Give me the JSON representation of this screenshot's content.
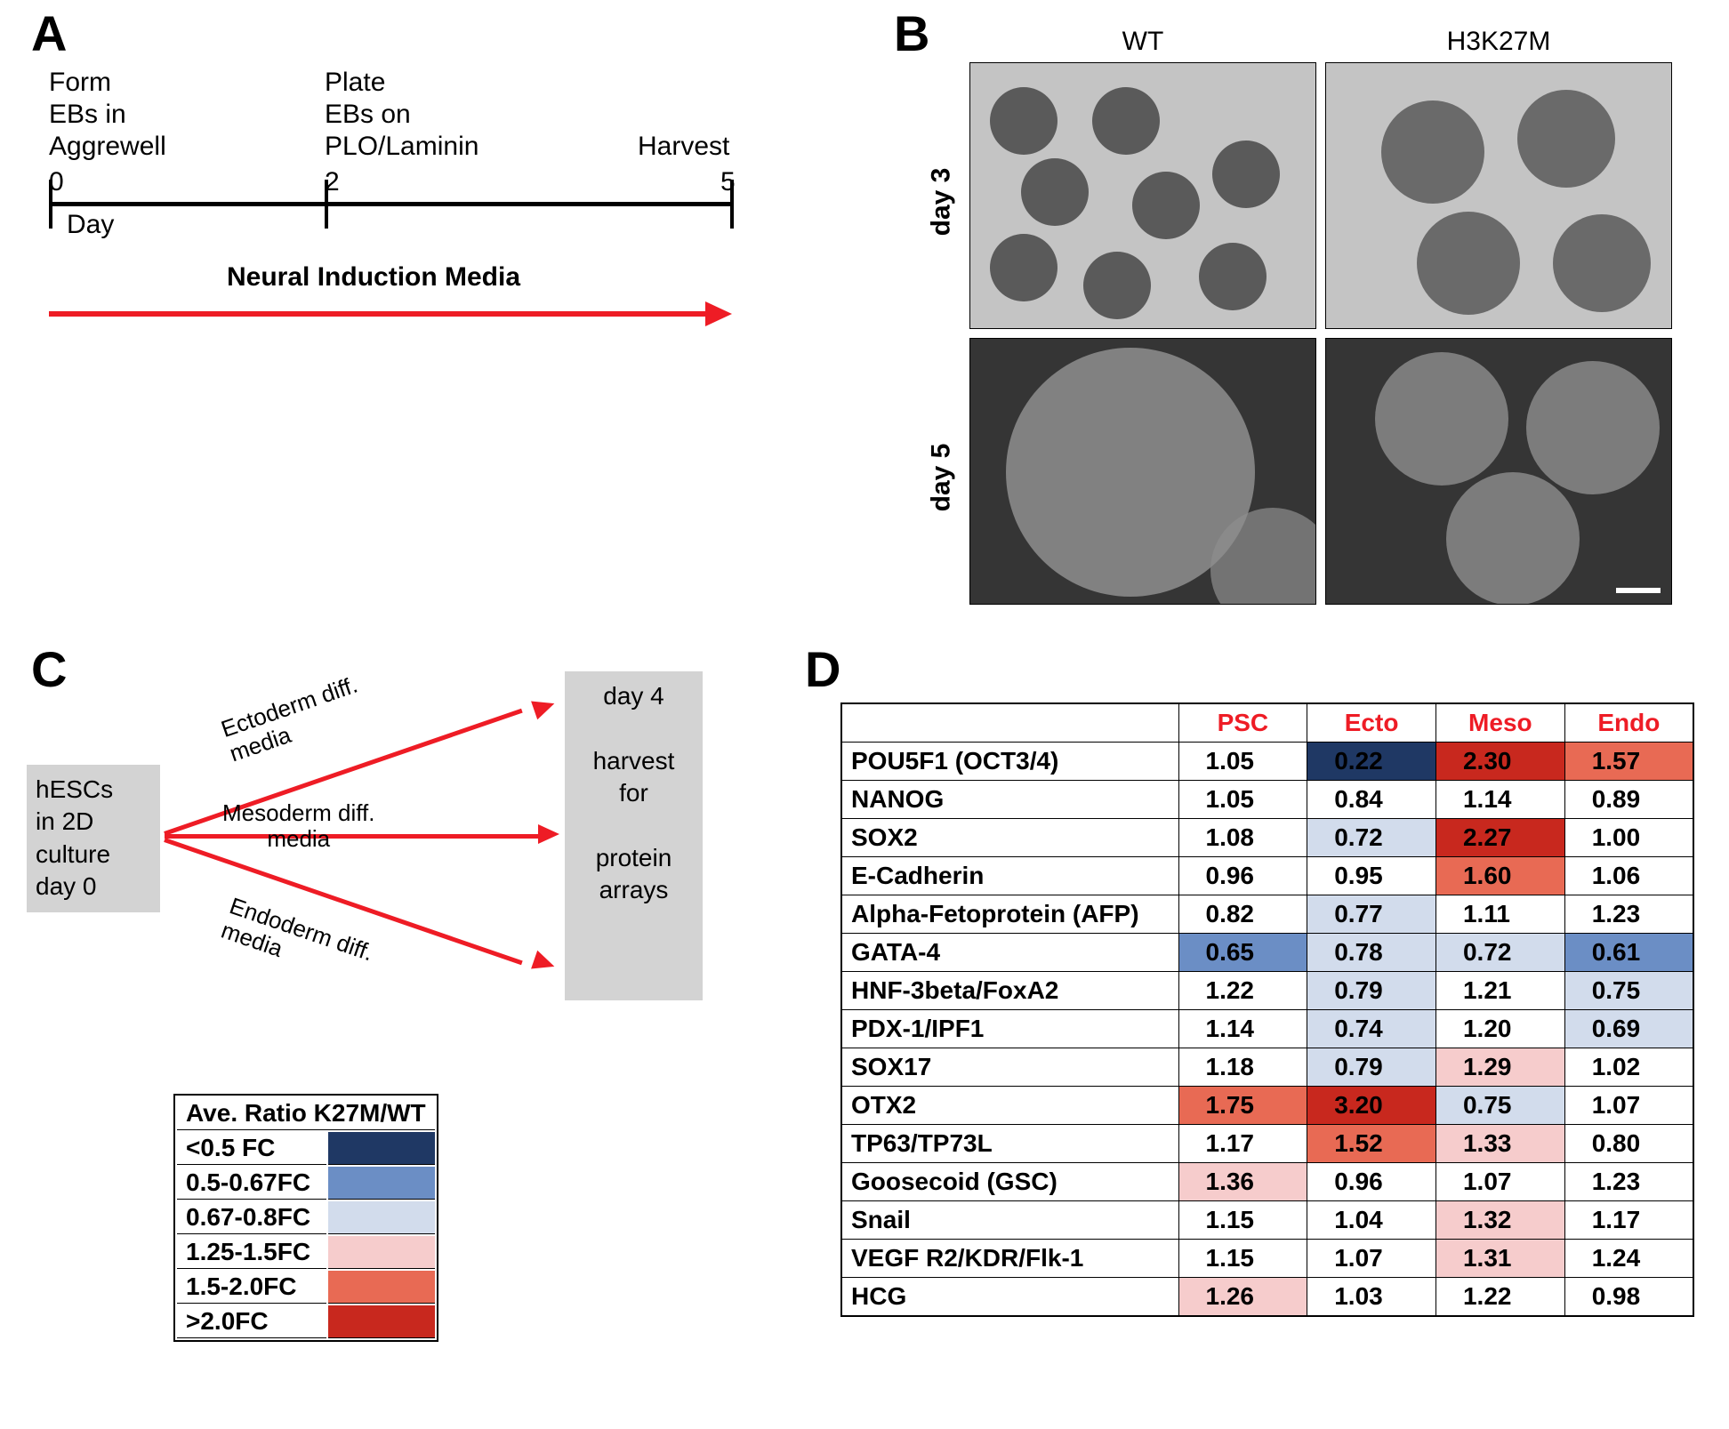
{
  "panelLabels": {
    "A": "A",
    "B": "B",
    "C": "C",
    "D": "D"
  },
  "panelA": {
    "step1": "Form\nEBs in\nAggrewell",
    "step2": "Plate\nEBs on\nPLO/Laminin",
    "step3": "Harvest",
    "day_label": "Day",
    "t0": "0",
    "t2": "2",
    "t5": "5",
    "media": "Neural Induction Media",
    "arrow_color": "#ee1c25"
  },
  "panelB": {
    "col1": "WT",
    "col2": "H3K27M",
    "row1": "day 3",
    "row2": "day 5"
  },
  "panelC": {
    "box1": "hESCs\nin 2D\nculture\nday 0",
    "box2": "day 4\n\nharvest\nfor\n\nprotein\narrays",
    "a1": "Ectoderm diff.\nmedia",
    "a2": "Mesoderm diff.\nmedia",
    "a3": "Endoderm diff.\nmedia"
  },
  "legend": {
    "header": "Ave. Ratio K27M/WT",
    "rows": [
      {
        "label": "<0.5 FC",
        "color": "#1f3864"
      },
      {
        "label": "0.5-0.67FC",
        "color": "#6b8ec5"
      },
      {
        "label": "0.67-0.8FC",
        "color": "#d2dcec"
      },
      {
        "label": "1.25-1.5FC",
        "color": "#f6cccc"
      },
      {
        "label": "1.5-2.0FC",
        "color": "#e86a54"
      },
      {
        "label": ">2.0FC",
        "color": "#c8281e"
      }
    ]
  },
  "panelD": {
    "columns": [
      "",
      "PSC",
      "Ecto",
      "Meso",
      "Endo"
    ],
    "heatmap_colors": {
      "dark_blue": "#1f3864",
      "mid_blue": "#6b8ec5",
      "light_blue": "#d2dcec",
      "light_red": "#f6cccc",
      "mid_red": "#e86a54",
      "dark_red": "#c8281e",
      "white": "#ffffff"
    },
    "rows": [
      {
        "name": "POU5F1 (OCT3/4)",
        "vals": [
          {
            "v": "1.05",
            "c": "#ffffff"
          },
          {
            "v": "0.22",
            "c": "#1f3864"
          },
          {
            "v": "2.30",
            "c": "#c8281e"
          },
          {
            "v": "1.57",
            "c": "#e86a54"
          }
        ]
      },
      {
        "name": "NANOG",
        "vals": [
          {
            "v": "1.05",
            "c": "#ffffff"
          },
          {
            "v": "0.84",
            "c": "#ffffff"
          },
          {
            "v": "1.14",
            "c": "#ffffff"
          },
          {
            "v": "0.89",
            "c": "#ffffff"
          }
        ]
      },
      {
        "name": "SOX2",
        "vals": [
          {
            "v": "1.08",
            "c": "#ffffff"
          },
          {
            "v": "0.72",
            "c": "#d2dcec"
          },
          {
            "v": "2.27",
            "c": "#c8281e"
          },
          {
            "v": "1.00",
            "c": "#ffffff"
          }
        ]
      },
      {
        "name": "E-Cadherin",
        "vals": [
          {
            "v": "0.96",
            "c": "#ffffff"
          },
          {
            "v": "0.95",
            "c": "#ffffff"
          },
          {
            "v": "1.60",
            "c": "#e86a54"
          },
          {
            "v": "1.06",
            "c": "#ffffff"
          }
        ]
      },
      {
        "name": "Alpha-Fetoprotein (AFP)",
        "vals": [
          {
            "v": "0.82",
            "c": "#ffffff"
          },
          {
            "v": "0.77",
            "c": "#d2dcec"
          },
          {
            "v": "1.11",
            "c": "#ffffff"
          },
          {
            "v": "1.23",
            "c": "#ffffff"
          }
        ]
      },
      {
        "name": "GATA-4",
        "vals": [
          {
            "v": "0.65",
            "c": "#6b8ec5"
          },
          {
            "v": "0.78",
            "c": "#d2dcec"
          },
          {
            "v": "0.72",
            "c": "#d2dcec"
          },
          {
            "v": "0.61",
            "c": "#6b8ec5"
          }
        ]
      },
      {
        "name": "HNF-3beta/FoxA2",
        "vals": [
          {
            "v": "1.22",
            "c": "#ffffff"
          },
          {
            "v": "0.79",
            "c": "#d2dcec"
          },
          {
            "v": "1.21",
            "c": "#ffffff"
          },
          {
            "v": "0.75",
            "c": "#d2dcec"
          }
        ]
      },
      {
        "name": "PDX-1/IPF1",
        "vals": [
          {
            "v": "1.14",
            "c": "#ffffff"
          },
          {
            "v": "0.74",
            "c": "#d2dcec"
          },
          {
            "v": "1.20",
            "c": "#ffffff"
          },
          {
            "v": "0.69",
            "c": "#d2dcec"
          }
        ]
      },
      {
        "name": "SOX17",
        "vals": [
          {
            "v": "1.18",
            "c": "#ffffff"
          },
          {
            "v": "0.79",
            "c": "#d2dcec"
          },
          {
            "v": "1.29",
            "c": "#f6cccc"
          },
          {
            "v": "1.02",
            "c": "#ffffff"
          }
        ]
      },
      {
        "name": "OTX2",
        "vals": [
          {
            "v": "1.75",
            "c": "#e86a54"
          },
          {
            "v": "3.20",
            "c": "#c8281e"
          },
          {
            "v": "0.75",
            "c": "#d2dcec"
          },
          {
            "v": "1.07",
            "c": "#ffffff"
          }
        ]
      },
      {
        "name": "TP63/TP73L",
        "vals": [
          {
            "v": "1.17",
            "c": "#ffffff"
          },
          {
            "v": "1.52",
            "c": "#e86a54"
          },
          {
            "v": "1.33",
            "c": "#f6cccc"
          },
          {
            "v": "0.80",
            "c": "#ffffff"
          }
        ]
      },
      {
        "name": "Goosecoid (GSC)",
        "vals": [
          {
            "v": "1.36",
            "c": "#f6cccc"
          },
          {
            "v": "0.96",
            "c": "#ffffff"
          },
          {
            "v": "1.07",
            "c": "#ffffff"
          },
          {
            "v": "1.23",
            "c": "#ffffff"
          }
        ]
      },
      {
        "name": "Snail",
        "vals": [
          {
            "v": "1.15",
            "c": "#ffffff"
          },
          {
            "v": "1.04",
            "c": "#ffffff"
          },
          {
            "v": "1.32",
            "c": "#f6cccc"
          },
          {
            "v": "1.17",
            "c": "#ffffff"
          }
        ]
      },
      {
        "name": "VEGF R2/KDR/Flk-1",
        "vals": [
          {
            "v": "1.15",
            "c": "#ffffff"
          },
          {
            "v": "1.07",
            "c": "#ffffff"
          },
          {
            "v": "1.31",
            "c": "#f6cccc"
          },
          {
            "v": "1.24",
            "c": "#ffffff"
          }
        ]
      },
      {
        "name": "HCG",
        "vals": [
          {
            "v": "1.26",
            "c": "#f6cccc"
          },
          {
            "v": "1.03",
            "c": "#ffffff"
          },
          {
            "v": "1.22",
            "c": "#ffffff"
          },
          {
            "v": "0.98",
            "c": "#ffffff"
          }
        ]
      }
    ]
  }
}
